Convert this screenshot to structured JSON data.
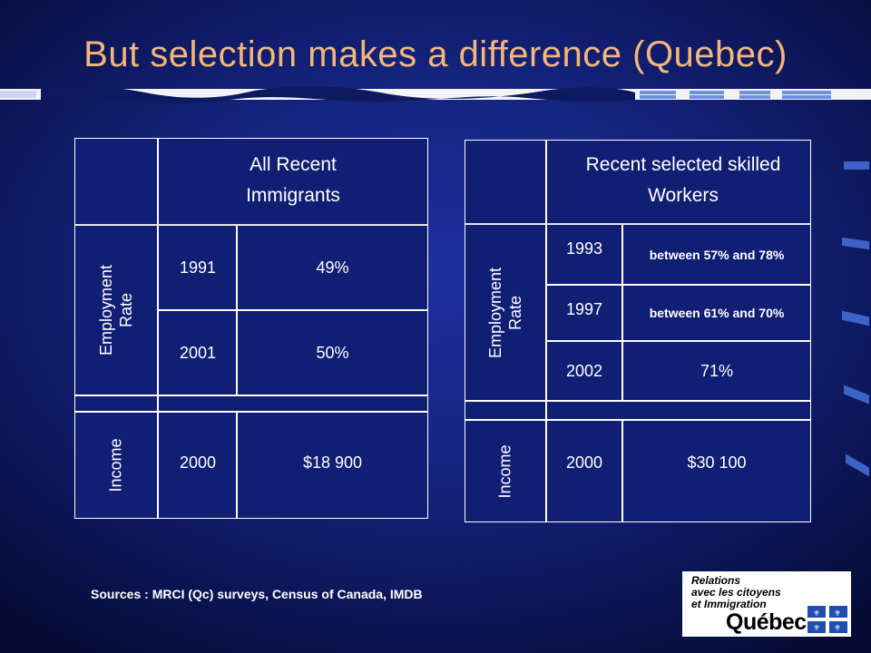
{
  "title": "But selection makes a difference (Quebec)",
  "left_table": {
    "header": "All Recent Immigrants",
    "emp_label": "Employment Rate",
    "rows_emp": [
      {
        "year": "1991",
        "value": "49%"
      },
      {
        "year": "2001",
        "value": "50%"
      }
    ],
    "income_label": "Income",
    "income_row": {
      "year": "2000",
      "value": "$18 900"
    }
  },
  "right_table": {
    "header": "Recent selected skilled Workers",
    "emp_label": "Employment Rate",
    "rows_emp": [
      {
        "year": "1993",
        "value": "between 57% and 78%"
      },
      {
        "year": "1997",
        "value": "between 61% and 70%"
      },
      {
        "year": "2002",
        "value": "71%"
      }
    ],
    "income_label": "Income",
    "income_row": {
      "year": "2000",
      "value": "$30 100"
    }
  },
  "sources": "Sources : MRCI (Qc) surveys, Census of Canada, IMDB",
  "logo": {
    "line1": "Relations",
    "line2": "avec les citoyens",
    "line3": "et Immigration",
    "wordmark": "Québec"
  },
  "colors": {
    "title": "#f4b67a",
    "background": "#14237c",
    "table_line": "#ffffff"
  }
}
